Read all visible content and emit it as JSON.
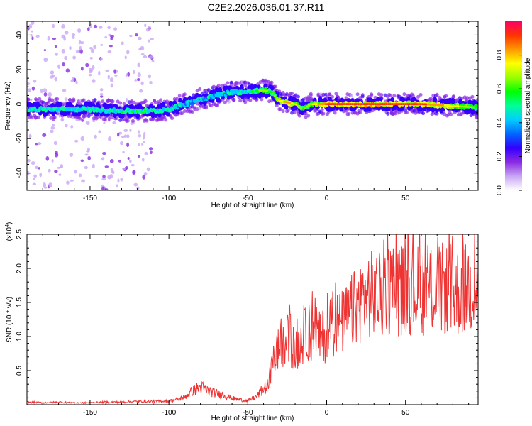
{
  "title": "C2E2.2026.036.01.37.R11",
  "chart_data": [
    {
      "type": "heatmap",
      "xlabel": "Height of straight line (km)",
      "ylabel": "Frequency (Hz)",
      "xlim": [
        -190,
        96
      ],
      "ylim": [
        -50,
        48
      ],
      "xticks": [
        -150,
        -100,
        -50,
        0,
        50
      ],
      "yticks": [
        -40,
        -20,
        0,
        20,
        40
      ],
      "colorbar": {
        "label": "Normalized spectral amplitude",
        "range": [
          0,
          1
        ],
        "ticks": [
          "0.0",
          "0.2",
          "0.4",
          "0.6",
          "0.8"
        ],
        "colors": [
          "#ffffff",
          "#c9a6f5",
          "#8a2be2",
          "#3300ff",
          "#0066ff",
          "#00ccff",
          "#00ff99",
          "#00ff00",
          "#99ff00",
          "#ffff00",
          "#ff9900",
          "#ff3300",
          "#ff0066"
        ]
      },
      "ridge": {
        "x": [
          -190,
          -170,
          -150,
          -130,
          -110,
          -100,
          -90,
          -80,
          -70,
          -60,
          -50,
          -40,
          -35,
          -30,
          -25,
          -20,
          -15,
          -10,
          0,
          20,
          40,
          60,
          80,
          96
        ],
        "y": [
          -3,
          -3,
          -3,
          -4,
          -4,
          -3,
          0,
          3,
          5,
          7,
          7,
          8,
          7,
          2,
          1,
          0,
          -3,
          0,
          0,
          0,
          0,
          0,
          -1,
          -2
        ],
        "amplitude": [
          0.5,
          0.5,
          0.5,
          0.55,
          0.55,
          0.5,
          0.45,
          0.45,
          0.45,
          0.45,
          0.55,
          0.65,
          0.6,
          0.75,
          0.85,
          0.75,
          0.6,
          0.7,
          0.9,
          0.9,
          0.9,
          0.9,
          0.75,
          0.6
        ]
      }
    },
    {
      "type": "line",
      "xlabel": "Height of straight line (km)",
      "ylabel": "SNR (10 * v/v)",
      "yscale_label": "(x10",
      "yscale_exp": "4",
      "yscale_suffix": ")",
      "xlim": [
        -190,
        96
      ],
      "ylim": [
        0,
        2.5
      ],
      "xticks": [
        -150,
        -100,
        -50,
        0,
        50
      ],
      "yticks": [
        "0.5",
        "1.0",
        "1.5",
        "2.0",
        "2.5"
      ],
      "color": "#ee3333",
      "series": [
        {
          "x": [
            -190,
            -180,
            -170,
            -160,
            -150,
            -140,
            -130,
            -120,
            -110,
            -100,
            -95,
            -90,
            -85,
            -80,
            -75,
            -70,
            -65,
            -60,
            -55,
            -50,
            -45,
            -40,
            -37,
            -35,
            -32,
            -30,
            -27,
            -25,
            -22,
            -20,
            -17,
            -15,
            -12,
            -10,
            -7,
            -5,
            -2,
            0,
            5,
            10,
            15,
            20,
            25,
            30,
            35,
            40,
            45,
            50,
            55,
            60,
            65,
            70,
            75,
            80,
            85,
            90,
            96
          ],
          "values": [
            0.04,
            0.03,
            0.04,
            0.03,
            0.03,
            0.04,
            0.04,
            0.05,
            0.05,
            0.06,
            0.08,
            0.12,
            0.22,
            0.28,
            0.22,
            0.18,
            0.15,
            0.1,
            0.08,
            0.06,
            0.12,
            0.25,
            0.3,
            0.55,
            0.85,
            0.9,
            0.9,
            1.05,
            0.95,
            0.8,
            1.0,
            1.05,
            1.15,
            1.1,
            1.3,
            1.05,
            1.1,
            1.1,
            1.3,
            1.3,
            1.45,
            1.6,
            1.75,
            1.75,
            1.7,
            1.85,
            1.8,
            1.85,
            1.85,
            1.8,
            1.85,
            1.8,
            1.85,
            1.75,
            1.8,
            1.85,
            1.9
          ]
        }
      ]
    }
  ]
}
